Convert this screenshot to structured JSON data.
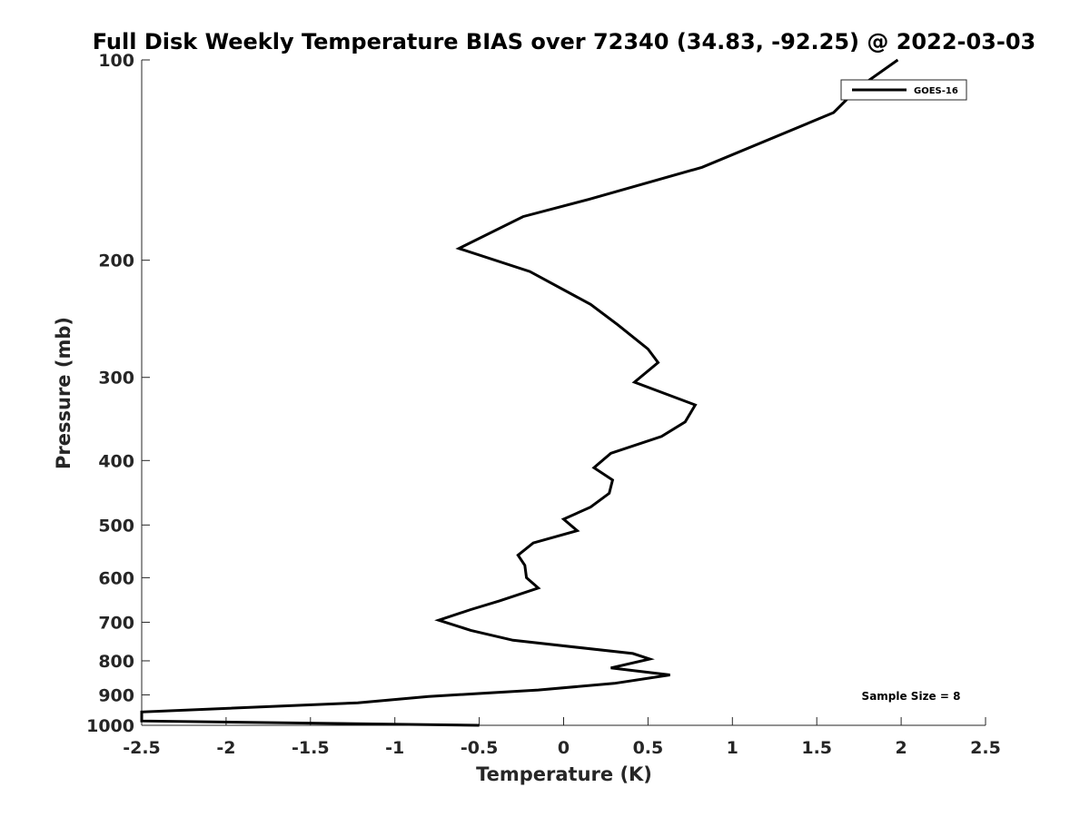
{
  "chart_data": {
    "type": "line",
    "title": "Full Disk Weekly Temperature BIAS over 72340 (34.83, -92.25) @ 2022-03-03",
    "xlabel": "Temperature (K)",
    "ylabel": "Pressure (mb)",
    "xlim": [
      -2.5,
      2.5
    ],
    "ylim": [
      100,
      1000
    ],
    "y_scale": "log",
    "y_reversed": true,
    "x_ticks": [
      "-2.5",
      "-2",
      "-1.5",
      "-1",
      "-0.5",
      "0",
      "0.5",
      "1",
      "1.5",
      "2",
      "2.5"
    ],
    "x_tick_values": [
      -2.5,
      -2,
      -1.5,
      -1,
      -0.5,
      0,
      0.5,
      1,
      1.5,
      2,
      2.5
    ],
    "y_ticks": [
      "100",
      "200",
      "300",
      "400",
      "500",
      "600",
      "700",
      "800",
      "900",
      "1000"
    ],
    "y_tick_values": [
      100,
      200,
      300,
      400,
      500,
      600,
      700,
      800,
      900,
      1000
    ],
    "grid": false,
    "legend_position": "top-right",
    "annotation": "Sample Size = 8",
    "series": [
      {
        "name": "GOES-16",
        "color": "#000000",
        "points": [
          [
            1.98,
            100
          ],
          [
            1.75,
            110
          ],
          [
            1.6,
            120
          ],
          [
            0.82,
            145
          ],
          [
            0.15,
            162
          ],
          [
            -0.24,
            172
          ],
          [
            -0.62,
            192
          ],
          [
            -0.2,
            208
          ],
          [
            0.16,
            233
          ],
          [
            0.32,
            250
          ],
          [
            0.5,
            272
          ],
          [
            0.56,
            285
          ],
          [
            0.42,
            305
          ],
          [
            0.78,
            330
          ],
          [
            0.72,
            350
          ],
          [
            0.58,
            368
          ],
          [
            0.28,
            390
          ],
          [
            0.18,
            410
          ],
          [
            0.29,
            428
          ],
          [
            0.27,
            448
          ],
          [
            0.16,
            470
          ],
          [
            0.0,
            490
          ],
          [
            0.08,
            510
          ],
          [
            -0.18,
            532
          ],
          [
            -0.27,
            555
          ],
          [
            -0.23,
            575
          ],
          [
            -0.22,
            600
          ],
          [
            -0.15,
            622
          ],
          [
            -0.38,
            650
          ],
          [
            -0.55,
            670
          ],
          [
            -0.74,
            695
          ],
          [
            -0.55,
            720
          ],
          [
            -0.3,
            745
          ],
          [
            0.41,
            780
          ],
          [
            0.51,
            795
          ],
          [
            0.28,
            820
          ],
          [
            0.63,
            840
          ],
          [
            0.3,
            865
          ],
          [
            -0.15,
            885
          ],
          [
            -0.8,
            905
          ],
          [
            -1.22,
            925
          ],
          [
            -2.5,
            955
          ],
          [
            -2.5,
            985
          ],
          [
            -0.5,
            1000
          ]
        ]
      }
    ]
  }
}
